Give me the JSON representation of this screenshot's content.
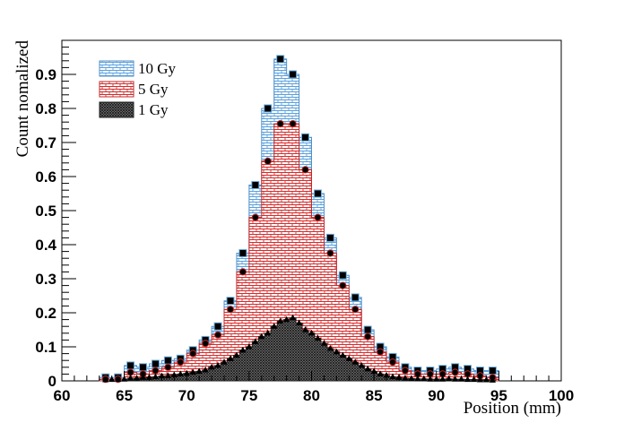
{
  "chart_data": {
    "type": "bar",
    "title": "",
    "xlabel": "Position (mm)",
    "ylabel": "Count nomalized",
    "xlim": [
      60,
      100
    ],
    "ylim": [
      0,
      1.0
    ],
    "x_ticks": [
      60,
      65,
      70,
      75,
      80,
      85,
      90,
      95,
      100
    ],
    "y_ticks": [
      0,
      0.1,
      0.2,
      0.3,
      0.4,
      0.5,
      0.6,
      0.7,
      0.8,
      0.9
    ],
    "y_tick_labels": [
      "0",
      "0.1",
      "0.2",
      "0.3",
      "0.4",
      "0.5",
      "0.6",
      "0.7",
      "0.8",
      "0.9"
    ],
    "bin_width": 1,
    "legend_position": "top-left",
    "series": [
      {
        "name": "10 Gy",
        "style": "blue-white brick hatch, square markers",
        "color": "#6aaee0",
        "marker": "square",
        "bins": [
          [
            63.5,
            0.01
          ],
          [
            64.5,
            0.01
          ],
          [
            65.5,
            0.045
          ],
          [
            66.5,
            0.04
          ],
          [
            67.5,
            0.05
          ],
          [
            68.5,
            0.06
          ],
          [
            69.5,
            0.065
          ],
          [
            70.5,
            0.09
          ],
          [
            71.5,
            0.12
          ],
          [
            72.5,
            0.16
          ],
          [
            73.5,
            0.235
          ],
          [
            74.5,
            0.375
          ],
          [
            75.5,
            0.575
          ],
          [
            76.5,
            0.8
          ],
          [
            77.5,
            0.945
          ],
          [
            78.5,
            0.9
          ],
          [
            79.5,
            0.715
          ],
          [
            80.5,
            0.55
          ],
          [
            81.5,
            0.42
          ],
          [
            82.5,
            0.31
          ],
          [
            83.5,
            0.245
          ],
          [
            84.5,
            0.15
          ],
          [
            85.5,
            0.1
          ],
          [
            86.5,
            0.07
          ],
          [
            87.5,
            0.04
          ],
          [
            88.5,
            0.03
          ],
          [
            89.5,
            0.03
          ],
          [
            90.5,
            0.035
          ],
          [
            91.5,
            0.04
          ],
          [
            92.5,
            0.035
          ],
          [
            93.5,
            0.03
          ],
          [
            94.5,
            0.03
          ]
        ]
      },
      {
        "name": "5 Gy",
        "style": "red-white brick hatch, circle markers",
        "color": "#d03030",
        "marker": "circle",
        "bins": [
          [
            63.5,
            0.005
          ],
          [
            64.5,
            0.005
          ],
          [
            65.5,
            0.025
          ],
          [
            66.5,
            0.02
          ],
          [
            67.5,
            0.03
          ],
          [
            68.5,
            0.04
          ],
          [
            69.5,
            0.055
          ],
          [
            70.5,
            0.08
          ],
          [
            71.5,
            0.11
          ],
          [
            72.5,
            0.135
          ],
          [
            73.5,
            0.21
          ],
          [
            74.5,
            0.32
          ],
          [
            75.5,
            0.48
          ],
          [
            76.5,
            0.645
          ],
          [
            77.5,
            0.755
          ],
          [
            78.5,
            0.755
          ],
          [
            79.5,
            0.62
          ],
          [
            80.5,
            0.48
          ],
          [
            81.5,
            0.375
          ],
          [
            82.5,
            0.28
          ],
          [
            83.5,
            0.21
          ],
          [
            84.5,
            0.13
          ],
          [
            85.5,
            0.085
          ],
          [
            86.5,
            0.055
          ],
          [
            87.5,
            0.03
          ],
          [
            88.5,
            0.02
          ],
          [
            89.5,
            0.02
          ],
          [
            90.5,
            0.02
          ],
          [
            91.5,
            0.025
          ],
          [
            92.5,
            0.02
          ],
          [
            93.5,
            0.015
          ],
          [
            94.5,
            0.01
          ]
        ]
      },
      {
        "name": "1 Gy",
        "style": "dark dense hatch, triangle markers",
        "color": "#555555",
        "marker": "triangle",
        "bins": [
          [
            63.5,
            0.003
          ],
          [
            64.0,
            0.004
          ],
          [
            64.5,
            0.004
          ],
          [
            65.0,
            0.005
          ],
          [
            65.5,
            0.008
          ],
          [
            66.0,
            0.008
          ],
          [
            66.5,
            0.01
          ],
          [
            67.0,
            0.01
          ],
          [
            67.5,
            0.012
          ],
          [
            68.0,
            0.014
          ],
          [
            68.5,
            0.015
          ],
          [
            69.0,
            0.017
          ],
          [
            69.5,
            0.02
          ],
          [
            70.0,
            0.022
          ],
          [
            70.5,
            0.025
          ],
          [
            71.0,
            0.028
          ],
          [
            71.5,
            0.032
          ],
          [
            72.0,
            0.04
          ],
          [
            72.5,
            0.045
          ],
          [
            73.0,
            0.055
          ],
          [
            73.5,
            0.065
          ],
          [
            74.0,
            0.075
          ],
          [
            74.5,
            0.09
          ],
          [
            75.0,
            0.1
          ],
          [
            75.5,
            0.115
          ],
          [
            76.0,
            0.13
          ],
          [
            76.5,
            0.14
          ],
          [
            77.0,
            0.16
          ],
          [
            77.5,
            0.175
          ],
          [
            78.0,
            0.18
          ],
          [
            78.5,
            0.185
          ],
          [
            79.0,
            0.17
          ],
          [
            79.5,
            0.15
          ],
          [
            80.0,
            0.14
          ],
          [
            80.5,
            0.125
          ],
          [
            81.0,
            0.11
          ],
          [
            81.5,
            0.095
          ],
          [
            82.0,
            0.085
          ],
          [
            82.5,
            0.075
          ],
          [
            83.0,
            0.065
          ],
          [
            83.5,
            0.055
          ],
          [
            84.0,
            0.045
          ],
          [
            84.5,
            0.035
          ],
          [
            85.0,
            0.028
          ],
          [
            85.5,
            0.02
          ],
          [
            86.0,
            0.016
          ],
          [
            86.5,
            0.012
          ],
          [
            87.0,
            0.01
          ],
          [
            87.5,
            0.008
          ],
          [
            88.0,
            0.007
          ],
          [
            88.5,
            0.006
          ],
          [
            89.0,
            0.006
          ],
          [
            89.5,
            0.005
          ],
          [
            90.0,
            0.005
          ],
          [
            90.5,
            0.005
          ],
          [
            91.0,
            0.006
          ],
          [
            91.5,
            0.005
          ],
          [
            92.0,
            0.005
          ],
          [
            92.5,
            0.004
          ],
          [
            93.0,
            0.004
          ],
          [
            93.5,
            0.003
          ],
          [
            94.0,
            0.003
          ],
          [
            94.5,
            0.002
          ]
        ]
      }
    ]
  }
}
